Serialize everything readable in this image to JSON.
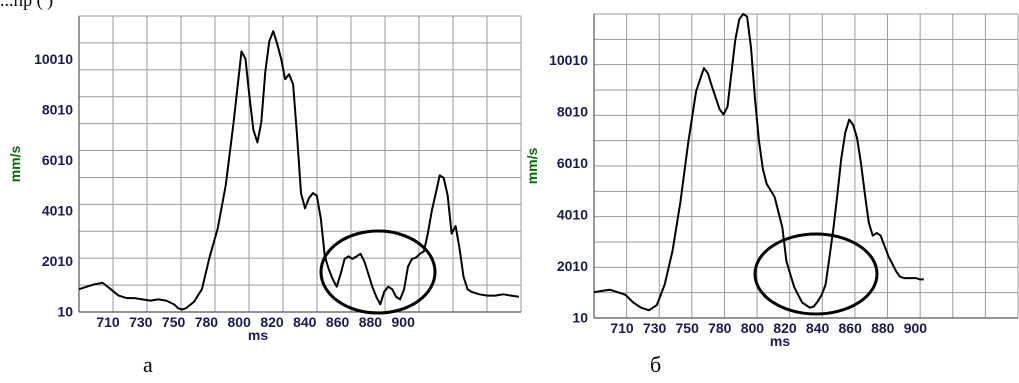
{
  "fragment_text": "...пр       (    )",
  "chart_data": [
    {
      "type": "line",
      "title": "",
      "xlabel": "ms",
      "ylabel": "mm/s",
      "x_ticks": [
        710,
        730,
        750,
        780,
        800,
        820,
        840,
        860,
        880,
        900
      ],
      "y_ticks": [
        10,
        2010,
        4010,
        6010,
        8010,
        10010
      ],
      "xlim": [
        702,
        925
      ],
      "ylim": [
        0,
        11700
      ],
      "grid": true,
      "caption": "а",
      "annotation": "ellipse around 836-870 ms region",
      "series": [
        {
          "x": [
            702,
            706,
            710,
            714,
            718,
            722,
            726,
            730,
            734,
            738,
            742,
            746,
            750,
            752,
            754,
            756,
            760,
            764,
            768,
            772,
            776,
            780,
            784,
            786,
            788,
            790,
            792,
            794,
            796,
            798,
            800,
            802,
            804,
            806,
            808,
            810,
            812,
            814,
            816,
            818,
            820,
            822,
            824,
            826,
            828,
            830,
            832,
            834,
            836,
            838,
            840,
            842,
            844,
            846,
            848,
            850,
            852,
            854,
            856,
            858,
            860,
            862,
            864,
            866,
            868,
            870,
            872,
            874,
            876,
            878,
            880,
            882,
            884,
            886,
            888,
            890,
            892,
            894,
            896,
            898,
            900,
            904,
            908,
            912,
            916,
            920,
            924
          ],
          "y": [
            900,
            1000,
            1100,
            1150,
            900,
            650,
            550,
            550,
            500,
            450,
            500,
            450,
            300,
            150,
            100,
            150,
            400,
            900,
            2200,
            3300,
            5000,
            7500,
            10300,
            10000,
            8500,
            7200,
            6700,
            7500,
            9500,
            10700,
            11100,
            10600,
            10000,
            9200,
            9400,
            9000,
            7000,
            4700,
            4100,
            4500,
            4700,
            4600,
            3700,
            2200,
            1700,
            1300,
            1000,
            1500,
            2100,
            2200,
            2100,
            2200,
            2300,
            2000,
            1500,
            1000,
            600,
            300,
            800,
            1000,
            900,
            600,
            500,
            900,
            1800,
            2100,
            2150,
            2300,
            2400,
            3100,
            4000,
            4700,
            5400,
            5300,
            4600,
            3100,
            3400,
            2500,
            1400,
            900,
            800,
            700,
            650,
            650,
            700,
            650,
            600
          ]
        }
      ]
    },
    {
      "type": "line",
      "title": "",
      "xlabel": "ms",
      "ylabel": "mm/s",
      "x_ticks": [
        710,
        730,
        750,
        780,
        800,
        820,
        840,
        860,
        880,
        900
      ],
      "y_ticks": [
        10,
        2010,
        4010,
        6010,
        8010,
        10010
      ],
      "xlim": [
        702,
        918
      ],
      "ylim": [
        0,
        11800
      ],
      "grid": true,
      "caption": "б",
      "annotation": "ellipse around 800-830 ms region",
      "series": [
        {
          "x": [
            702,
            706,
            710,
            714,
            718,
            722,
            726,
            730,
            734,
            738,
            742,
            746,
            750,
            754,
            758,
            760,
            762,
            766,
            768,
            770,
            772,
            774,
            776,
            778,
            780,
            782,
            784,
            786,
            788,
            790,
            794,
            798,
            800,
            804,
            808,
            812,
            814,
            816,
            818,
            820,
            822,
            824,
            826,
            828,
            830,
            832,
            834,
            836,
            838,
            840,
            842,
            844,
            846,
            848,
            850,
            852,
            854,
            856,
            858,
            860,
            862,
            864,
            866,
            868,
            870
          ],
          "y": [
            1000,
            1050,
            1100,
            1000,
            900,
            600,
            400,
            300,
            500,
            1300,
            2600,
            4500,
            6800,
            8800,
            9700,
            9500,
            9000,
            8100,
            7900,
            8200,
            9500,
            10800,
            11600,
            11800,
            11700,
            10500,
            8500,
            6900,
            5800,
            5200,
            4700,
            3500,
            2200,
            1200,
            600,
            400,
            450,
            650,
            900,
            1300,
            2400,
            3500,
            4800,
            6200,
            7200,
            7700,
            7500,
            7000,
            6000,
            4800,
            3700,
            3200,
            3300,
            3200,
            2800,
            2400,
            2100,
            1800,
            1600,
            1550,
            1550,
            1550,
            1550,
            1500,
            1500
          ]
        }
      ]
    }
  ]
}
